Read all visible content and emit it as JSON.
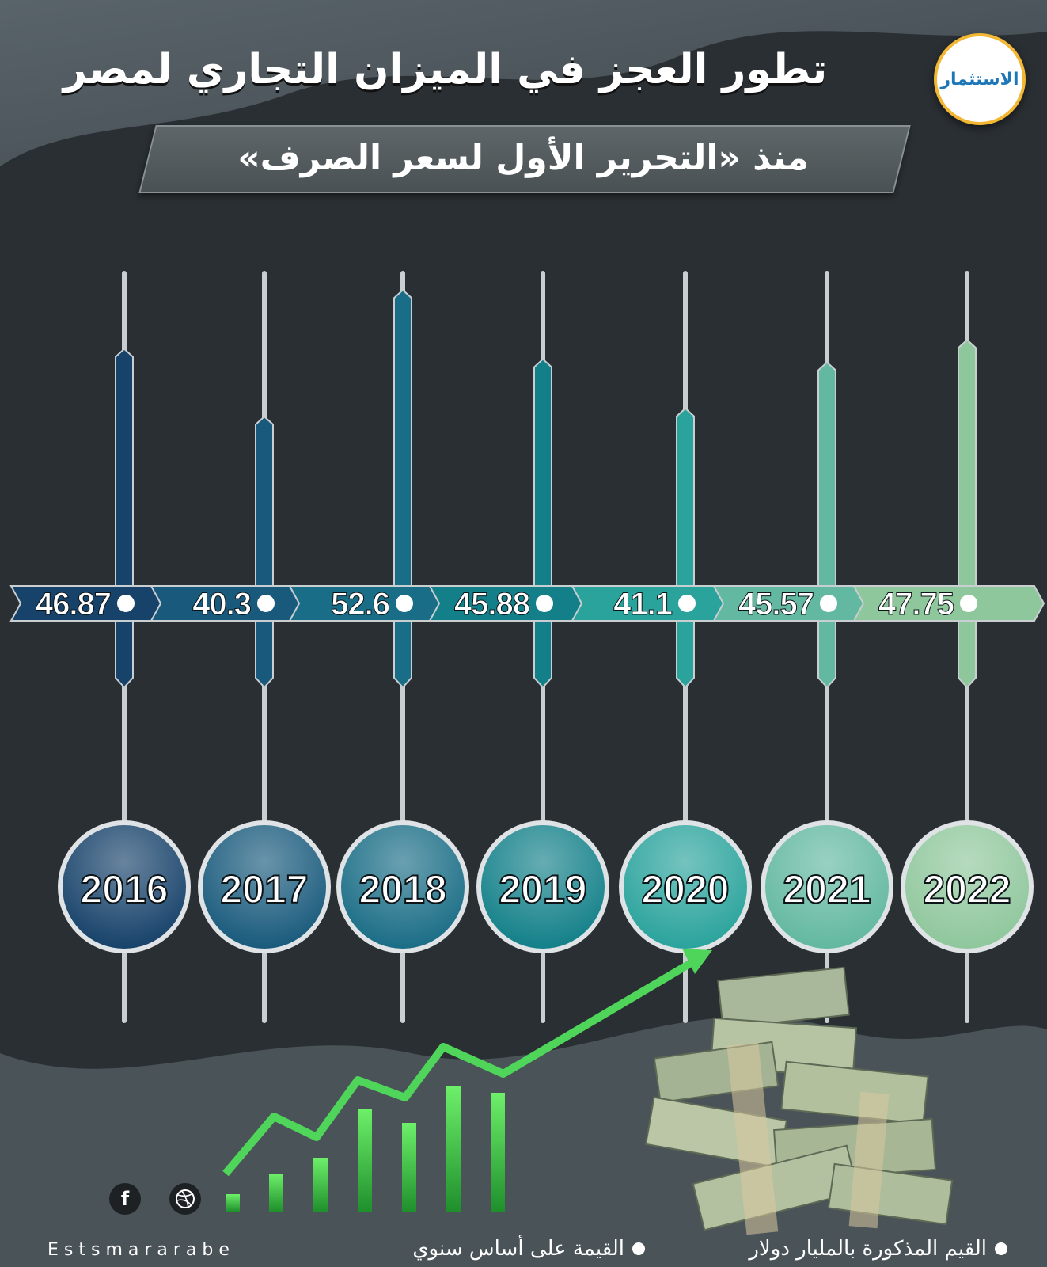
{
  "header": {
    "title": "تطور العجز في الميزان التجاري لمصر",
    "subtitle": "منذ «التحرير الأول لسعر الصرف»",
    "logo_text": "الاستثمار"
  },
  "chart_data": {
    "type": "bar",
    "title": "تطور العجز في الميزان التجاري لمصر",
    "subtitle": "منذ «التحرير الأول لسعر الصرف»",
    "categories": [
      "2016",
      "2017",
      "2018",
      "2019",
      "2020",
      "2021",
      "2022"
    ],
    "values": [
      46.87,
      40.3,
      52.6,
      45.88,
      41.1,
      45.57,
      47.75
    ],
    "value_labels": [
      "46.87",
      "40.3",
      "52.6",
      "45.88",
      "41.1",
      "45.57",
      "47.75"
    ],
    "colors": [
      "#17426a",
      "#195a7c",
      "#1a6d86",
      "#138089",
      "#2aa39c",
      "#62b8a0",
      "#8fc79c"
    ],
    "legend": [
      "القيم المذكورة بالمليار دولار",
      "القيمة على أساس سنوي"
    ],
    "legend_position": "bottom"
  },
  "footer": {
    "facebook_icon": "facebook-icon",
    "dribbble_icon": "dribbble-icon",
    "handle": "Estsmararabe",
    "social_glyph_fb": "f"
  },
  "theme": {
    "background": "#2a2f33",
    "arrow_green": "#4fd65a"
  }
}
